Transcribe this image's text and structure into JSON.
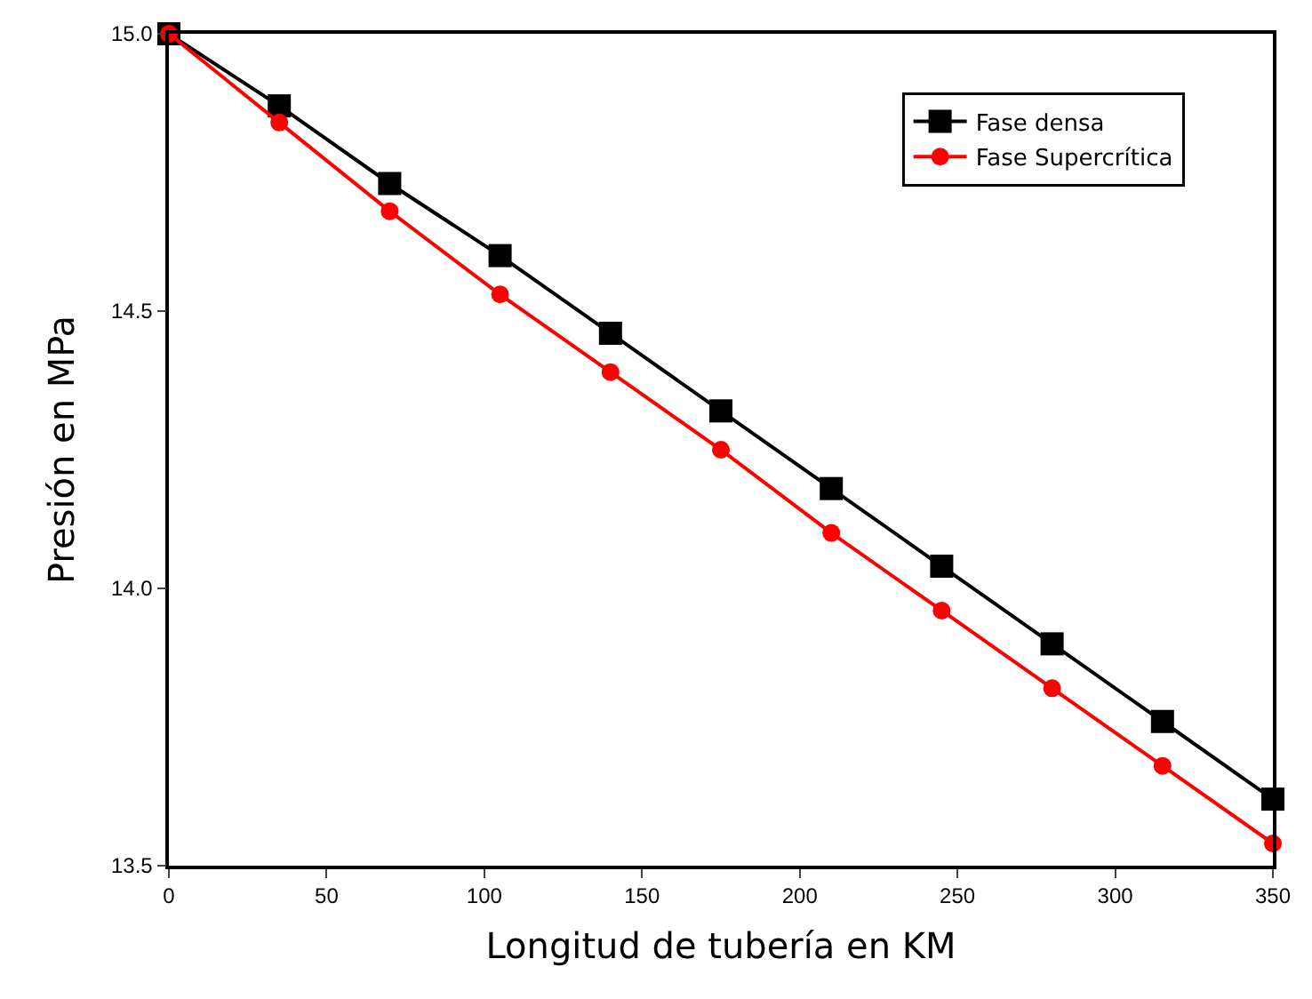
{
  "chart_data": {
    "type": "line",
    "xlabel": "Longitud de tubería en KM",
    "ylabel": "Presión en MPa",
    "x": [
      0,
      35,
      70,
      105,
      140,
      175,
      210,
      245,
      280,
      315,
      350
    ],
    "series": [
      {
        "name": "Fase densa",
        "color": "#000000",
        "marker": "square",
        "values": [
          15.0,
          14.87,
          14.73,
          14.6,
          14.46,
          14.32,
          14.18,
          14.04,
          13.9,
          13.76,
          13.62
        ]
      },
      {
        "name": "Fase Supercrítica",
        "color": "#ff0000",
        "marker": "circle",
        "values": [
          15.0,
          14.84,
          14.68,
          14.53,
          14.39,
          14.25,
          14.1,
          13.96,
          13.82,
          13.68,
          13.54
        ]
      }
    ],
    "xlim": [
      0,
      350
    ],
    "xticks": [
      0,
      50,
      100,
      150,
      200,
      250,
      300,
      350
    ],
    "ylim": [
      13.5,
      15.0
    ],
    "yticks": [
      {
        "value": 13.5,
        "label": "13.5"
      },
      {
        "value": 14.0,
        "label": "14.0"
      },
      {
        "value": 14.5,
        "label": "14.5"
      },
      {
        "value": 15.0,
        "label": "15.0"
      }
    ],
    "legend": "top right",
    "line_style": "solid"
  }
}
